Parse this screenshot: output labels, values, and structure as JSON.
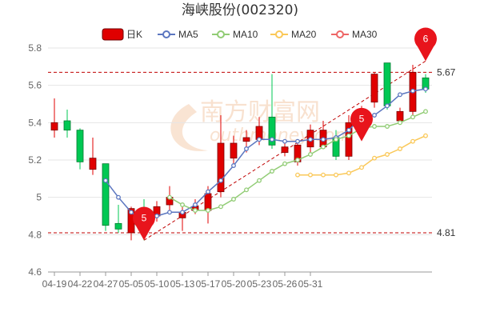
{
  "chart_data": {
    "type": "candlestick",
    "title": "海峡股份(002320)",
    "legend": [
      {
        "name": "日K",
        "color": "#e00000",
        "kind": "kline"
      },
      {
        "name": "MA5",
        "color": "#5b76c0",
        "kind": "line"
      },
      {
        "name": "MA10",
        "color": "#91cc75",
        "kind": "line"
      },
      {
        "name": "MA20",
        "color": "#fac858",
        "kind": "line"
      },
      {
        "name": "MA30",
        "color": "#ee6666",
        "kind": "line"
      }
    ],
    "colors": {
      "up": "#e00000",
      "down": "#00c853",
      "grid": "#e6e6e6",
      "dash": "#c00000"
    },
    "ylim": [
      4.6,
      5.8
    ],
    "yticks": [
      4.6,
      4.8,
      5,
      5.2,
      5.4,
      5.6,
      5.8
    ],
    "xtick_labels": [
      {
        "index": 0,
        "label": "04-19"
      },
      {
        "index": 2,
        "label": "04-22"
      },
      {
        "index": 4,
        "label": "04-27"
      },
      {
        "index": 6,
        "label": "05-05"
      },
      {
        "index": 8,
        "label": "05-10"
      },
      {
        "index": 10,
        "label": "05-13"
      },
      {
        "index": 12,
        "label": "05-17"
      },
      {
        "index": 14,
        "label": "05-20"
      },
      {
        "index": 16,
        "label": "05-23"
      },
      {
        "index": 18,
        "label": "05-26"
      },
      {
        "index": 20,
        "label": "05-31"
      }
    ],
    "candles": [
      {
        "open": 5.36,
        "close": 5.4,
        "high": 5.53,
        "low": 5.32
      },
      {
        "open": 5.41,
        "close": 5.36,
        "high": 5.47,
        "low": 5.32
      },
      {
        "open": 5.36,
        "close": 5.19,
        "high": 5.37,
        "low": 5.15
      },
      {
        "open": 5.15,
        "close": 5.21,
        "high": 5.32,
        "low": 5.12
      },
      {
        "open": 5.18,
        "close": 4.85,
        "high": 5.18,
        "low": 4.82
      },
      {
        "open": 4.86,
        "close": 4.83,
        "high": 4.96,
        "low": 4.81
      },
      {
        "open": 4.81,
        "close": 4.94,
        "high": 4.95,
        "low": 4.77
      },
      {
        "open": 4.86,
        "close": 4.81,
        "high": 4.99,
        "low": 4.77
      },
      {
        "open": 4.9,
        "close": 4.95,
        "high": 4.98,
        "low": 4.87
      },
      {
        "open": 4.96,
        "close": 5.0,
        "high": 5.06,
        "low": 4.92
      },
      {
        "open": 4.89,
        "close": 4.92,
        "high": 4.97,
        "low": 4.82
      },
      {
        "open": 4.93,
        "close": 4.95,
        "high": 4.99,
        "low": 4.91
      },
      {
        "open": 4.93,
        "close": 5.02,
        "high": 5.06,
        "low": 4.86
      },
      {
        "open": 5.03,
        "close": 5.29,
        "high": 5.44,
        "low": 5.0
      },
      {
        "open": 5.21,
        "close": 5.29,
        "high": 5.33,
        "low": 5.18
      },
      {
        "open": 5.3,
        "close": 5.32,
        "high": 5.36,
        "low": 5.24
      },
      {
        "open": 5.31,
        "close": 5.38,
        "high": 5.43,
        "low": 5.28
      },
      {
        "open": 5.43,
        "close": 5.28,
        "high": 5.66,
        "low": 5.26
      },
      {
        "open": 5.24,
        "close": 5.27,
        "high": 5.29,
        "low": 5.22
      },
      {
        "open": 5.19,
        "close": 5.28,
        "high": 5.31,
        "low": 5.17
      },
      {
        "open": 5.27,
        "close": 5.36,
        "high": 5.39,
        "low": 5.23
      },
      {
        "open": 5.27,
        "close": 5.36,
        "high": 5.41,
        "low": 5.26
      },
      {
        "open": 5.32,
        "close": 5.22,
        "high": 5.36,
        "low": 5.2
      },
      {
        "open": 5.22,
        "close": 5.4,
        "high": 5.44,
        "low": 5.2
      },
      {
        "open": 5.4,
        "close": 5.46,
        "high": 5.49,
        "low": 5.38
      },
      {
        "open": 5.51,
        "close": 5.66,
        "high": 5.67,
        "low": 5.48
      },
      {
        "open": 5.72,
        "close": 5.49,
        "high": 5.72,
        "low": 5.47
      },
      {
        "open": 5.41,
        "close": 5.46,
        "high": 5.48,
        "low": 5.4
      },
      {
        "open": 5.46,
        "close": 5.67,
        "high": 5.71,
        "low": 5.44
      },
      {
        "open": 5.64,
        "close": 5.58,
        "high": 5.66,
        "low": 5.56
      }
    ],
    "series": [
      {
        "name": "MA5",
        "color": "#5b76c0",
        "start": 4,
        "values": [
          5.09,
          5.0,
          4.92,
          4.87,
          4.9,
          4.92,
          4.92,
          4.96,
          5.03,
          5.09,
          5.17,
          5.26,
          5.31,
          5.31,
          5.3,
          5.3,
          5.31,
          5.31,
          5.32,
          5.36,
          5.43,
          5.44,
          5.49,
          5.55,
          5.57,
          5.58
        ]
      },
      {
        "name": "MA10",
        "color": "#91cc75",
        "start": 9,
        "values": [
          5.0,
          4.96,
          4.93,
          4.93,
          4.95,
          4.99,
          5.04,
          5.09,
          5.14,
          5.18,
          5.2,
          5.23,
          5.27,
          5.31,
          5.33,
          5.37,
          5.38,
          5.38,
          5.4,
          5.43,
          5.46
        ]
      },
      {
        "name": "MA20",
        "color": "#fac858",
        "start": 19,
        "values": [
          5.12,
          5.12,
          5.12,
          5.12,
          5.13,
          5.16,
          5.21,
          5.23,
          5.26,
          5.3,
          5.33
        ]
      }
    ],
    "markers": [
      {
        "label": "5.67",
        "value": 5.67,
        "type": "max"
      },
      {
        "label": "4.81",
        "value": 4.81,
        "type": "min"
      }
    ],
    "pins": [
      {
        "text": "5",
        "index": 7,
        "value": 4.77
      },
      {
        "text": "5",
        "index": 24,
        "value": 5.3
      },
      {
        "text": "6",
        "index": 29,
        "value": 5.73
      }
    ],
    "watermark": {
      "text": "南方财富网",
      "sub": "outhmoney.com"
    }
  }
}
